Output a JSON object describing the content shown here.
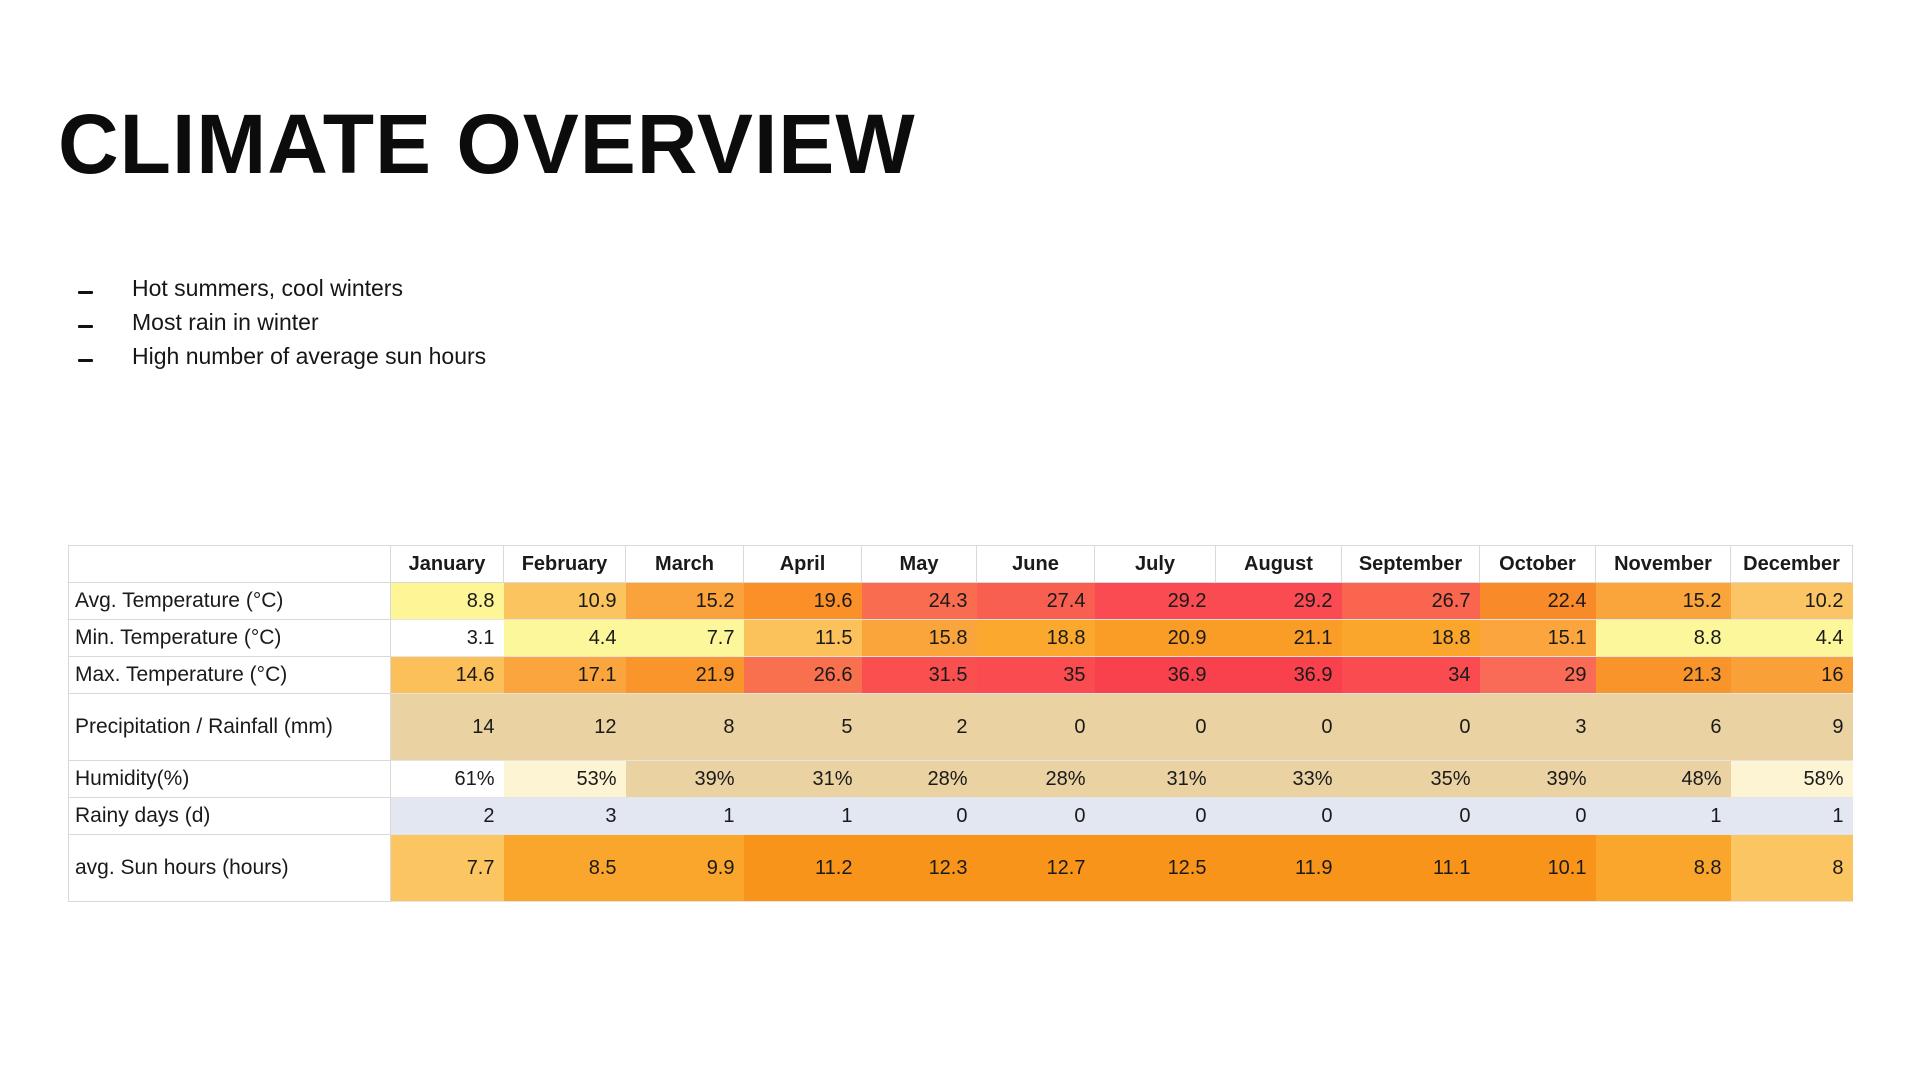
{
  "page": {
    "title": "CLIMATE OVERVIEW",
    "bullets": [
      "Hot summers, cool winters",
      "Most rain in winter",
      "High number of average sun hours"
    ]
  },
  "chart_data": {
    "type": "heatmap",
    "title": "CLIMATE OVERVIEW",
    "categories": [
      "January",
      "February",
      "March",
      "April",
      "May",
      "June",
      "July",
      "August",
      "September",
      "October",
      "November",
      "December"
    ],
    "corner_label": "",
    "series": [
      {
        "name": "Avg. Temperature (°C)",
        "values": [
          8.8,
          10.9,
          15.2,
          19.6,
          24.3,
          27.4,
          29.2,
          29.2,
          26.7,
          22.4,
          15.2,
          10.2
        ],
        "display": [
          "8.8",
          "10.9",
          "15.2",
          "19.6",
          "24.3",
          "27.4",
          "29.2",
          "29.2",
          "26.7",
          "22.4",
          "15.2",
          "10.2"
        ],
        "cell_colors": [
          "#FEF596",
          "#FBC45E",
          "#FAA33C",
          "#FA9027",
          "#F96C4F",
          "#F95F50",
          "#F94B51",
          "#F94B51",
          "#F9654F",
          "#F98A29",
          "#FAA43C",
          "#FBC566"
        ]
      },
      {
        "name": "Min. Temperature (°C)",
        "values": [
          3.1,
          4.4,
          7.7,
          11.5,
          15.8,
          18.8,
          20.9,
          21.1,
          18.8,
          15.1,
          8.8,
          4.4
        ],
        "display": [
          "3.1",
          "4.4",
          "7.7",
          "11.5",
          "15.8",
          "18.8",
          "20.9",
          "21.1",
          "18.8",
          "15.1",
          "8.8",
          "4.4"
        ],
        "cell_colors": [
          "#FFFFFF",
          "#FCF79B",
          "#FCF79B",
          "#FBC25C",
          "#FAA53B",
          "#FBA92E",
          "#F99D26",
          "#F99D26",
          "#FAA62C",
          "#FAA53E",
          "#FCF79B",
          "#FCF79B"
        ]
      },
      {
        "name": "Max. Temperature (°C)",
        "values": [
          14.6,
          17.1,
          21.9,
          26.6,
          31.5,
          35,
          36.9,
          36.9,
          34,
          29,
          21.3,
          16
        ],
        "display": [
          "14.6",
          "17.1",
          "21.9",
          "26.6",
          "31.5",
          "35",
          "36.9",
          "36.9",
          "34",
          "29",
          "21.3",
          "16"
        ],
        "cell_colors": [
          "#FBC05A",
          "#FAA53E",
          "#F9952B",
          "#F9704E",
          "#F9504F",
          "#F94B50",
          "#F9414E",
          "#F9414E",
          "#F94B50",
          "#F96B56",
          "#F9942B",
          "#FAA038"
        ]
      },
      {
        "name": "Precipitation / Rainfall (mm)",
        "values": [
          14,
          12,
          8,
          5,
          2,
          0,
          0,
          0,
          0,
          3,
          6,
          9
        ],
        "display": [
          "14",
          "12",
          "8",
          "5",
          "2",
          "0",
          "0",
          "0",
          "0",
          "3",
          "6",
          "9"
        ],
        "cell_colors": [
          "#EAD2A2",
          "#EAD2A2",
          "#EAD2A2",
          "#EAD2A2",
          "#EAD2A2",
          "#EAD2A2",
          "#EAD2A2",
          "#EAD2A2",
          "#EAD2A2",
          "#EAD2A2",
          "#EAD2A2",
          "#EAD2A2"
        ],
        "tall": true
      },
      {
        "name": "Humidity(%)",
        "values": [
          61,
          53,
          39,
          31,
          28,
          28,
          31,
          33,
          35,
          39,
          48,
          58
        ],
        "display": [
          "61%",
          "53%",
          "39%",
          "31%",
          "28%",
          "28%",
          "31%",
          "33%",
          "35%",
          "39%",
          "48%",
          "58%"
        ],
        "cell_colors": [
          "#FFFFFF",
          "#FCF4D3",
          "#EAD2A2",
          "#EAD2A2",
          "#EAD2A2",
          "#EAD2A2",
          "#EAD2A2",
          "#EAD2A2",
          "#EAD2A2",
          "#EAD2A2",
          "#EAD2A2",
          "#FCF4D3"
        ]
      },
      {
        "name": "Rainy days (d)",
        "values": [
          2,
          3,
          1,
          1,
          0,
          0,
          0,
          0,
          0,
          0,
          1,
          1
        ],
        "display": [
          "2",
          "3",
          "1",
          "1",
          "0",
          "0",
          "0",
          "0",
          "0",
          "0",
          "1",
          "1"
        ],
        "cell_colors": [
          "#E2E7F1",
          "#E2E7F1",
          "#E2E7F1",
          "#E2E7F1",
          "#E2E7F1",
          "#E2E7F1",
          "#E2E7F1",
          "#E2E7F1",
          "#E2E7F1",
          "#E2E7F1",
          "#E2E7F1",
          "#E2E7F1"
        ]
      },
      {
        "name": "avg. Sun hours (hours)",
        "values": [
          7.7,
          8.5,
          9.9,
          11.2,
          12.3,
          12.7,
          12.5,
          11.9,
          11.1,
          10.1,
          8.8,
          8
        ],
        "display": [
          "7.7",
          "8.5",
          "9.9",
          "11.2",
          "12.3",
          "12.7",
          "12.5",
          "11.9",
          "11.1",
          "10.1",
          "8.8",
          "8"
        ],
        "cell_colors": [
          "#FBC661",
          "#FAA62C",
          "#FAA62C",
          "#F9941A",
          "#F9941A",
          "#F9941A",
          "#F9941A",
          "#F9941A",
          "#F9941A",
          "#F9941A",
          "#FAA62C",
          "#FBC661"
        ],
        "tall": true
      }
    ],
    "layout": {
      "legend": "none",
      "grid": "light-gray table borders",
      "value_alignment": "right"
    }
  }
}
